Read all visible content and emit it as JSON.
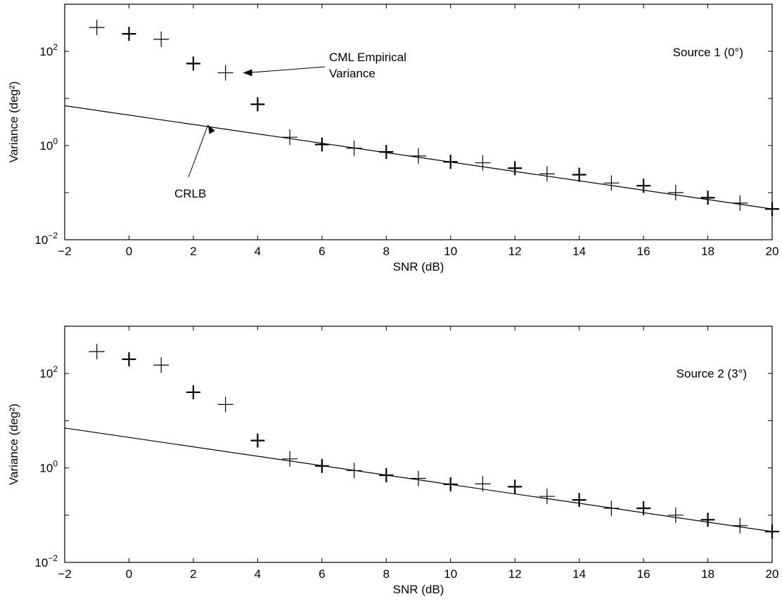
{
  "chart_data": [
    {
      "type": "scatter",
      "xlabel": "SNR (dB)",
      "ylabel": "Variance (deg²)",
      "xlim": [
        -2,
        20
      ],
      "ylim": [
        0.01,
        1000
      ],
      "yscale": "log",
      "xticks": [
        -2,
        0,
        2,
        4,
        6,
        8,
        10,
        12,
        14,
        16,
        18,
        20
      ],
      "xtick_labels": [
        "−2",
        "0",
        "2",
        "4",
        "6",
        "8",
        "10",
        "12",
        "14",
        "16",
        "18",
        "20"
      ],
      "yticks": [
        0.01,
        1,
        100
      ],
      "ytick_labels": [
        {
          "base": "10",
          "exp": "−2"
        },
        {
          "base": "10",
          "exp": "0"
        },
        {
          "base": "10",
          "exp": "2"
        }
      ],
      "grid": false,
      "series": [
        {
          "name": "CML Empirical Variance",
          "marker": "plus",
          "x": [
            -1,
            0,
            1,
            2,
            3,
            4,
            5,
            6,
            7,
            8,
            9,
            10,
            11,
            12,
            13,
            14,
            15,
            16,
            17,
            18,
            19,
            20
          ],
          "y": [
            320,
            235,
            180,
            55,
            35,
            7.5,
            1.5,
            1.05,
            0.88,
            0.73,
            0.6,
            0.45,
            0.43,
            0.33,
            0.25,
            0.24,
            0.16,
            0.14,
            0.1,
            0.078,
            0.06,
            0.045
          ]
        },
        {
          "name": "CRLB",
          "type": "line",
          "x": [
            -2,
            20
          ],
          "y": [
            7.0,
            0.045
          ]
        }
      ],
      "annotations": [
        {
          "text": "Source 1 (0°)"
        },
        {
          "lines": [
            "CML Empirical",
            "Variance"
          ],
          "x": 3.5,
          "y": 35
        },
        {
          "text": "CRLB",
          "x": 2.5,
          "y": 3.6
        }
      ]
    },
    {
      "type": "scatter",
      "xlabel": "SNR (dB)",
      "ylabel": "Variance (deg²)",
      "xlim": [
        -2,
        20
      ],
      "ylim": [
        0.01,
        1000
      ],
      "yscale": "log",
      "xticks": [
        -2,
        0,
        2,
        4,
        6,
        8,
        10,
        12,
        14,
        16,
        18,
        20
      ],
      "xtick_labels": [
        "−2",
        "0",
        "2",
        "4",
        "6",
        "8",
        "10",
        "12",
        "14",
        "16",
        "18",
        "20"
      ],
      "yticks": [
        0.01,
        1,
        100
      ],
      "ytick_labels": [
        {
          "base": "10",
          "exp": "−2"
        },
        {
          "base": "10",
          "exp": "0"
        },
        {
          "base": "10",
          "exp": "2"
        }
      ],
      "grid": false,
      "series": [
        {
          "name": "CML Empirical Variance",
          "marker": "plus",
          "x": [
            -1,
            0,
            1,
            2,
            3,
            4,
            5,
            6,
            7,
            8,
            9,
            10,
            11,
            12,
            13,
            14,
            15,
            16,
            17,
            18,
            19,
            20
          ],
          "y": [
            290,
            200,
            150,
            40,
            22,
            3.8,
            1.55,
            1.1,
            0.88,
            0.7,
            0.6,
            0.45,
            0.46,
            0.4,
            0.25,
            0.21,
            0.14,
            0.14,
            0.1,
            0.08,
            0.06,
            0.045
          ]
        },
        {
          "name": "CRLB",
          "type": "line",
          "x": [
            -2,
            20
          ],
          "y": [
            7.0,
            0.045
          ]
        }
      ],
      "annotations": [
        {
          "text": "Source 2 (3°)"
        }
      ]
    }
  ]
}
